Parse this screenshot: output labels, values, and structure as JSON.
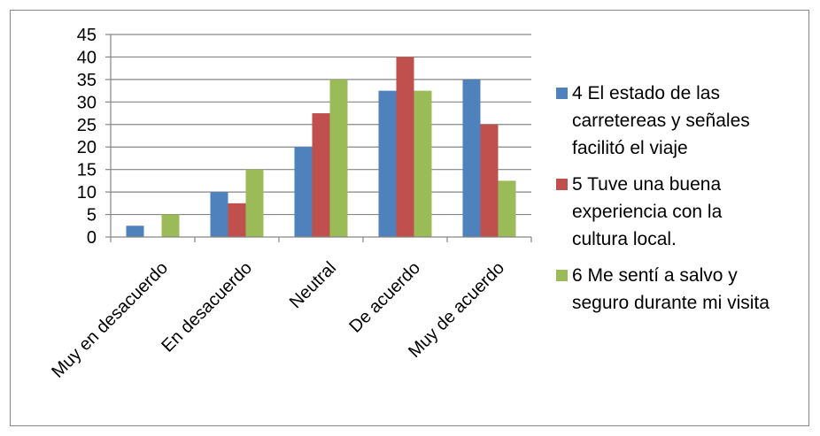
{
  "chart_data": {
    "type": "bar",
    "categories": [
      "Muy en desacuerdo",
      "En desacuerdo",
      "Neutral",
      "De acuerdo",
      "Muy de acuerdo"
    ],
    "series": [
      {
        "name": "4 El estado de las carreteras y señales facilitó el viaje",
        "lines": [
          "4 El estado de las",
          "carretereas y señales",
          "facilitó el viaje"
        ],
        "color": "#4f81bd",
        "values": [
          2.5,
          10,
          20,
          32.5,
          35
        ]
      },
      {
        "name": "5 Tuve una buena experiencia con la cultura local.",
        "lines": [
          "5 Tuve una buena",
          "experiencia con la",
          "cultura local."
        ],
        "color": "#c0504d",
        "values": [
          0,
          7.5,
          27.5,
          40,
          25
        ]
      },
      {
        "name": "6 Me sentí a salvo y seguro durante mi visita",
        "lines": [
          "6 Me sentí a salvo y",
          "seguro durante mi visita"
        ],
        "color": "#9bbb59",
        "values": [
          5,
          15,
          35,
          32.5,
          12.5
        ]
      }
    ],
    "ylim": [
      0,
      45
    ],
    "yticks": [
      0,
      5,
      10,
      15,
      20,
      25,
      30,
      35,
      40,
      45
    ],
    "grid": true,
    "legend_position": "right"
  }
}
